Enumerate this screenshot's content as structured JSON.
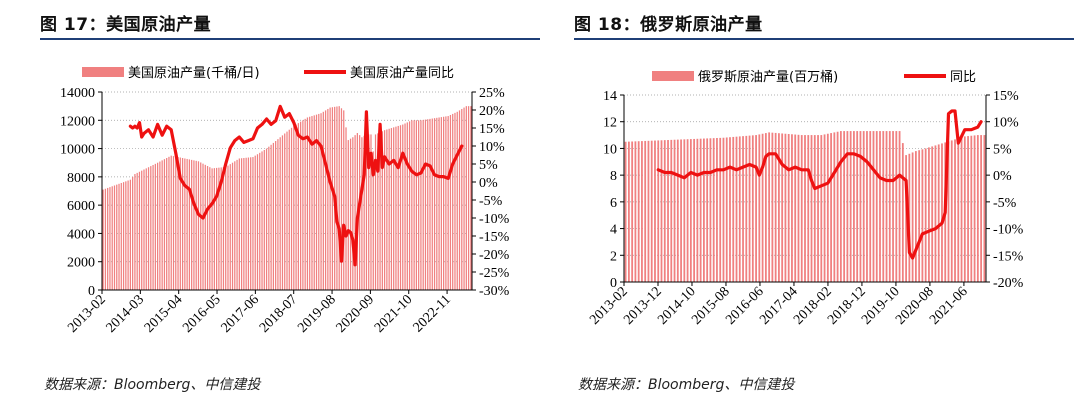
{
  "source_text": "数据来源：Bloomberg、中信建投",
  "chart_data": [
    {
      "type": "bar+line",
      "title": "图 17：美国原油产量",
      "legend": [
        "美国原油产量(千桶/日)",
        "美国原油产量同比"
      ],
      "bar_color": "#f08080",
      "line_color": "#ee1111",
      "y_left": {
        "min": 0,
        "max": 14000,
        "ticks": [
          0,
          2000,
          4000,
          6000,
          8000,
          10000,
          12000,
          14000
        ]
      },
      "y_right": {
        "min": -30,
        "max": 25,
        "ticks": [
          25,
          20,
          15,
          10,
          5,
          0,
          -5,
          -10,
          -15,
          -20,
          -25,
          -30
        ],
        "unit": "%"
      },
      "x_ticks": [
        "2013-02",
        "2014-03",
        "2015-04",
        "2016-05",
        "2017-06",
        "2018-07",
        "2019-08",
        "2020-09",
        "2021-10",
        "2022-11"
      ],
      "bar_anchors": [
        {
          "t": 0,
          "v": 7100
        },
        {
          "t": 12,
          "v": 7800
        },
        {
          "t": 14,
          "v": 8200
        },
        {
          "t": 24,
          "v": 9000
        },
        {
          "t": 30,
          "v": 9500
        },
        {
          "t": 36,
          "v": 9300
        },
        {
          "t": 42,
          "v": 9100
        },
        {
          "t": 48,
          "v": 8600
        },
        {
          "t": 54,
          "v": 8700
        },
        {
          "t": 60,
          "v": 9300
        },
        {
          "t": 66,
          "v": 9400
        },
        {
          "t": 72,
          "v": 10000
        },
        {
          "t": 78,
          "v": 10800
        },
        {
          "t": 84,
          "v": 11600
        },
        {
          "t": 90,
          "v": 12200
        },
        {
          "t": 96,
          "v": 12500
        },
        {
          "t": 100,
          "v": 12900
        },
        {
          "t": 104,
          "v": 13000
        },
        {
          "t": 106,
          "v": 12700
        },
        {
          "t": 107,
          "v": 11500
        },
        {
          "t": 108,
          "v": 10600
        },
        {
          "t": 110,
          "v": 10800
        },
        {
          "t": 112,
          "v": 11100
        },
        {
          "t": 114,
          "v": 10800
        },
        {
          "t": 116,
          "v": 11000
        },
        {
          "t": 118,
          "v": 11000
        },
        {
          "t": 119,
          "v": 9800
        },
        {
          "t": 120,
          "v": 11000
        },
        {
          "t": 124,
          "v": 11300
        },
        {
          "t": 128,
          "v": 11500
        },
        {
          "t": 132,
          "v": 11700
        },
        {
          "t": 136,
          "v": 12000
        },
        {
          "t": 140,
          "v": 12000
        },
        {
          "t": 144,
          "v": 12100
        },
        {
          "t": 148,
          "v": 12200
        },
        {
          "t": 152,
          "v": 12300
        },
        {
          "t": 156,
          "v": 12600
        },
        {
          "t": 160,
          "v": 13000
        }
      ],
      "line_points": [
        {
          "t": 12,
          "v": 15.5
        },
        {
          "t": 13,
          "v": 15
        },
        {
          "t": 14,
          "v": 15.5
        },
        {
          "t": 15,
          "v": 15
        },
        {
          "t": 16,
          "v": 16.5
        },
        {
          "t": 17,
          "v": 12.5
        },
        {
          "t": 18,
          "v": 13.5
        },
        {
          "t": 20,
          "v": 14.5
        },
        {
          "t": 22,
          "v": 12.5
        },
        {
          "t": 24,
          "v": 16
        },
        {
          "t": 26,
          "v": 13
        },
        {
          "t": 28,
          "v": 15.5
        },
        {
          "t": 30,
          "v": 14.5
        },
        {
          "t": 32,
          "v": 8
        },
        {
          "t": 34,
          "v": 1
        },
        {
          "t": 36,
          "v": -1
        },
        {
          "t": 38,
          "v": -2
        },
        {
          "t": 40,
          "v": -6
        },
        {
          "t": 42,
          "v": -9
        },
        {
          "t": 44,
          "v": -10
        },
        {
          "t": 46,
          "v": -7.5
        },
        {
          "t": 48,
          "v": -6
        },
        {
          "t": 50,
          "v": -4
        },
        {
          "t": 52,
          "v": 0
        },
        {
          "t": 54,
          "v": 5
        },
        {
          "t": 56,
          "v": 9.5
        },
        {
          "t": 58,
          "v": 11.5
        },
        {
          "t": 60,
          "v": 12.5
        },
        {
          "t": 62,
          "v": 11
        },
        {
          "t": 64,
          "v": 11.5
        },
        {
          "t": 66,
          "v": 12
        },
        {
          "t": 68,
          "v": 15
        },
        {
          "t": 70,
          "v": 16
        },
        {
          "t": 72,
          "v": 17.5
        },
        {
          "t": 74,
          "v": 16
        },
        {
          "t": 76,
          "v": 17
        },
        {
          "t": 78,
          "v": 21
        },
        {
          "t": 80,
          "v": 18
        },
        {
          "t": 82,
          "v": 19
        },
        {
          "t": 84,
          "v": 16.5
        },
        {
          "t": 86,
          "v": 13
        },
        {
          "t": 88,
          "v": 12
        },
        {
          "t": 90,
          "v": 12.5
        },
        {
          "t": 92,
          "v": 10.5
        },
        {
          "t": 94,
          "v": 11.5
        },
        {
          "t": 96,
          "v": 10
        },
        {
          "t": 98,
          "v": 5
        },
        {
          "t": 100,
          "v": 0
        },
        {
          "t": 102,
          "v": -4
        },
        {
          "t": 103,
          "v": -11
        },
        {
          "t": 104,
          "v": -13
        },
        {
          "t": 105,
          "v": -22
        },
        {
          "t": 106,
          "v": -12
        },
        {
          "t": 107,
          "v": -15
        },
        {
          "t": 108,
          "v": -13.5
        },
        {
          "t": 109,
          "v": -14
        },
        {
          "t": 110,
          "v": -16
        },
        {
          "t": 111,
          "v": -23
        },
        {
          "t": 112,
          "v": -10
        },
        {
          "t": 114,
          "v": -2
        },
        {
          "t": 115,
          "v": 2
        },
        {
          "t": 116,
          "v": 19.5
        },
        {
          "t": 117,
          "v": 4
        },
        {
          "t": 118,
          "v": 8
        },
        {
          "t": 119,
          "v": 2
        },
        {
          "t": 120,
          "v": 6
        },
        {
          "t": 121,
          "v": 3
        },
        {
          "t": 122,
          "v": 16
        },
        {
          "t": 123,
          "v": 4
        },
        {
          "t": 124,
          "v": 7
        },
        {
          "t": 126,
          "v": 5
        },
        {
          "t": 128,
          "v": 6
        },
        {
          "t": 130,
          "v": 4
        },
        {
          "t": 132,
          "v": 8
        },
        {
          "t": 134,
          "v": 5
        },
        {
          "t": 136,
          "v": 3
        },
        {
          "t": 138,
          "v": 2
        },
        {
          "t": 140,
          "v": 2.5
        },
        {
          "t": 142,
          "v": 5
        },
        {
          "t": 144,
          "v": 4.5
        },
        {
          "t": 146,
          "v": 2
        },
        {
          "t": 148,
          "v": 1.5
        },
        {
          "t": 150,
          "v": 1.5
        },
        {
          "t": 152,
          "v": 1
        },
        {
          "t": 154,
          "v": 5
        },
        {
          "t": 156,
          "v": 7.5
        },
        {
          "t": 158,
          "v": 10
        }
      ],
      "t_max": 162
    },
    {
      "type": "bar+line",
      "title": "图 18：俄罗斯原油产量",
      "legend": [
        "俄罗斯原油产量(百万桶)",
        "同比"
      ],
      "bar_color": "#f08080",
      "line_color": "#ee1111",
      "y_left": {
        "min": 0,
        "max": 14,
        "ticks": [
          0,
          2,
          4,
          6,
          8,
          10,
          12,
          14
        ]
      },
      "y_right": {
        "min": -20,
        "max": 15,
        "ticks": [
          15,
          10,
          5,
          0,
          -5,
          -10,
          -15,
          -20
        ],
        "unit": "%"
      },
      "x_ticks": [
        "2013-02",
        "2013-12",
        "2014-10",
        "2015-08",
        "2016-06",
        "2017-04",
        "2018-02",
        "2018-12",
        "2019-10",
        "2020-08",
        "2021-06"
      ],
      "bar_anchors": [
        {
          "t": 0,
          "v": 10.5
        },
        {
          "t": 10,
          "v": 10.6
        },
        {
          "t": 20,
          "v": 10.7
        },
        {
          "t": 30,
          "v": 10.8
        },
        {
          "t": 40,
          "v": 11.0
        },
        {
          "t": 44,
          "v": 11.2
        },
        {
          "t": 54,
          "v": 11.0
        },
        {
          "t": 60,
          "v": 11.0
        },
        {
          "t": 66,
          "v": 11.3
        },
        {
          "t": 72,
          "v": 11.3
        },
        {
          "t": 78,
          "v": 11.3
        },
        {
          "t": 84,
          "v": 11.3
        },
        {
          "t": 86,
          "v": 9.5
        },
        {
          "t": 89,
          "v": 9.8
        },
        {
          "t": 92,
          "v": 10.0
        },
        {
          "t": 96,
          "v": 10.3
        },
        {
          "t": 100,
          "v": 10.6
        },
        {
          "t": 104,
          "v": 10.9
        },
        {
          "t": 108,
          "v": 11.0
        }
      ],
      "line_points": [
        {
          "t": 10,
          "v": 1
        },
        {
          "t": 12,
          "v": 0.5
        },
        {
          "t": 14,
          "v": 0.5
        },
        {
          "t": 16,
          "v": 0
        },
        {
          "t": 18,
          "v": -0.5
        },
        {
          "t": 20,
          "v": 0.5
        },
        {
          "t": 22,
          "v": 0
        },
        {
          "t": 24,
          "v": 0.5
        },
        {
          "t": 26,
          "v": 0.5
        },
        {
          "t": 28,
          "v": 1
        },
        {
          "t": 30,
          "v": 1
        },
        {
          "t": 32,
          "v": 1.5
        },
        {
          "t": 34,
          "v": 1
        },
        {
          "t": 36,
          "v": 1.5
        },
        {
          "t": 38,
          "v": 2
        },
        {
          "t": 40,
          "v": 1.5
        },
        {
          "t": 41,
          "v": 0
        },
        {
          "t": 42,
          "v": 1.5
        },
        {
          "t": 43,
          "v": 3.5
        },
        {
          "t": 44,
          "v": 4
        },
        {
          "t": 46,
          "v": 4
        },
        {
          "t": 48,
          "v": 2
        },
        {
          "t": 50,
          "v": 1
        },
        {
          "t": 52,
          "v": 1.5
        },
        {
          "t": 54,
          "v": 1
        },
        {
          "t": 56,
          "v": 1
        },
        {
          "t": 57,
          "v": -1
        },
        {
          "t": 58,
          "v": -2.5
        },
        {
          "t": 60,
          "v": -2
        },
        {
          "t": 62,
          "v": -1.5
        },
        {
          "t": 64,
          "v": 0.5
        },
        {
          "t": 66,
          "v": 2.5
        },
        {
          "t": 68,
          "v": 4
        },
        {
          "t": 70,
          "v": 4
        },
        {
          "t": 72,
          "v": 3.5
        },
        {
          "t": 74,
          "v": 2.5
        },
        {
          "t": 76,
          "v": 1
        },
        {
          "t": 78,
          "v": -0.5
        },
        {
          "t": 80,
          "v": -1
        },
        {
          "t": 82,
          "v": -1
        },
        {
          "t": 84,
          "v": 0
        },
        {
          "t": 86,
          "v": -1
        },
        {
          "t": 87,
          "v": -14.5
        },
        {
          "t": 88,
          "v": -15.5
        },
        {
          "t": 89,
          "v": -14
        },
        {
          "t": 91,
          "v": -11
        },
        {
          "t": 93,
          "v": -10.5
        },
        {
          "t": 95,
          "v": -10
        },
        {
          "t": 97,
          "v": -9
        },
        {
          "t": 98,
          "v": -7
        },
        {
          "t": 99,
          "v": 11.5
        },
        {
          "t": 100,
          "v": 12
        },
        {
          "t": 101,
          "v": 12
        },
        {
          "t": 102,
          "v": 6
        },
        {
          "t": 104,
          "v": 8.5
        },
        {
          "t": 106,
          "v": 8.5
        },
        {
          "t": 108,
          "v": 9
        },
        {
          "t": 109,
          "v": 10
        }
      ],
      "t_max": 110
    }
  ]
}
